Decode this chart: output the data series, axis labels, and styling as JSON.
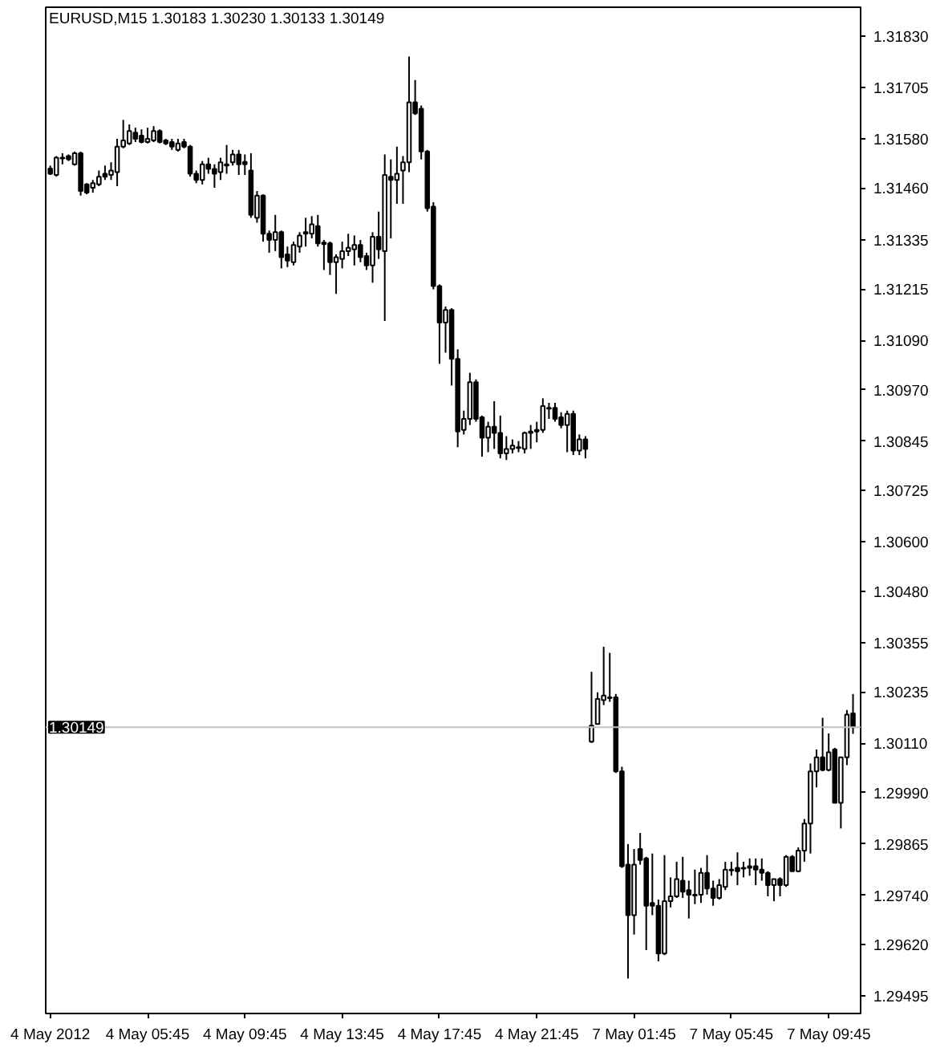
{
  "chart_data": {
    "type": "candlestick",
    "title": "EURUSD,M15  1.30183 1.30230 1.30133 1.30149",
    "categories": [
      "4 May 2012",
      null,
      null,
      null,
      null,
      null,
      null,
      null,
      null,
      null,
      null,
      null,
      null,
      null,
      null,
      null,
      "4 May 05:45",
      null,
      null,
      null,
      null,
      null,
      null,
      null,
      null,
      null,
      null,
      null,
      null,
      null,
      null,
      null,
      "4 May 09:45",
      null,
      null,
      null,
      null,
      null,
      null,
      null,
      null,
      null,
      null,
      null,
      null,
      null,
      null,
      null,
      "4 May 13:45",
      null,
      null,
      null,
      null,
      null,
      null,
      null,
      null,
      null,
      null,
      null,
      null,
      null,
      null,
      null,
      "4 May 17:45",
      null,
      null,
      null,
      null,
      null,
      null,
      null,
      null,
      null,
      null,
      null,
      null,
      null,
      null,
      null,
      "4 May 21:45",
      null,
      null,
      null,
      null,
      null,
      null,
      null,
      null,
      null,
      null,
      null,
      null,
      null,
      null,
      null,
      "7 May 01:45",
      null,
      null,
      null,
      null,
      null,
      null,
      null,
      null,
      null,
      null,
      null,
      null,
      null,
      null,
      null,
      "7 May 05:45",
      null,
      null,
      null,
      null,
      null,
      null,
      null,
      null,
      null,
      null,
      null,
      null,
      null,
      null,
      null,
      "7 May 09:45",
      null,
      null,
      null,
      null
    ],
    "ohlc": [
      [
        1.31508,
        1.31515,
        1.31492,
        1.31495
      ],
      [
        1.31492,
        1.31538,
        1.31488,
        1.31534
      ],
      [
        1.31532,
        1.31545,
        1.31518,
        1.31534
      ],
      [
        1.31538,
        1.31542,
        1.31526,
        1.3153
      ],
      [
        1.31518,
        1.31549,
        1.31515,
        1.31545
      ],
      [
        1.31545,
        1.31549,
        1.31442,
        1.31453
      ],
      [
        1.31469,
        1.31472,
        1.31445,
        1.31449
      ],
      [
        1.31461,
        1.3148,
        1.31449,
        1.31472
      ],
      [
        1.31469,
        1.31503,
        1.31465,
        1.31488
      ],
      [
        1.31495,
        1.31515,
        1.3148,
        1.31488
      ],
      [
        1.31492,
        1.31523,
        1.3148,
        1.31503
      ],
      [
        1.31499,
        1.3158,
        1.31465,
        1.31561
      ],
      [
        1.31561,
        1.31626,
        1.31557,
        1.31576
      ],
      [
        1.31569,
        1.31615,
        1.31565,
        1.31599
      ],
      [
        1.31595,
        1.31607,
        1.31572,
        1.3158
      ],
      [
        1.31588,
        1.31603,
        1.31569,
        1.31572
      ],
      [
        1.31572,
        1.31607,
        1.31569,
        1.3158
      ],
      [
        1.31576,
        1.31611,
        1.31572,
        1.31599
      ],
      [
        1.31599,
        1.31603,
        1.31569,
        1.31572
      ],
      [
        1.31576,
        1.3158,
        1.31565,
        1.31569
      ],
      [
        1.31572,
        1.3158,
        1.31553,
        1.31561
      ],
      [
        1.31553,
        1.3158,
        1.31549,
        1.31569
      ],
      [
        1.31572,
        1.3158,
        1.31557,
        1.31561
      ],
      [
        1.31561,
        1.31565,
        1.31488,
        1.31495
      ],
      [
        1.31495,
        1.31503,
        1.31472,
        1.3148
      ],
      [
        1.3148,
        1.31526,
        1.31469,
        1.31518
      ],
      [
        1.31518,
        1.31534,
        1.31495,
        1.31507
      ],
      [
        1.31507,
        1.31518,
        1.31461,
        1.31495
      ],
      [
        1.31499,
        1.31534,
        1.3148,
        1.31523
      ],
      [
        1.31518,
        1.31565,
        1.31495,
        1.31515
      ],
      [
        1.31523,
        1.31553,
        1.31515,
        1.31542
      ],
      [
        1.31542,
        1.31553,
        1.31492,
        1.31518
      ],
      [
        1.31524,
        1.31542,
        1.31492,
        1.31518
      ],
      [
        1.31503,
        1.31545,
        1.31388,
        1.31395
      ],
      [
        1.31388,
        1.31453,
        1.31376,
        1.31442
      ],
      [
        1.31442,
        1.31445,
        1.3133,
        1.31349
      ],
      [
        1.31349,
        1.31357,
        1.31303,
        1.31334
      ],
      [
        1.31334,
        1.31395,
        1.31307,
        1.31353
      ],
      [
        1.31353,
        1.31357,
        1.31265,
        1.31292
      ],
      [
        1.31299,
        1.31318,
        1.31268,
        1.31284
      ],
      [
        1.3128,
        1.3133,
        1.31272,
        1.31322
      ],
      [
        1.31318,
        1.31353,
        1.31303,
        1.31345
      ],
      [
        1.31349,
        1.31388,
        1.31318,
        1.31353
      ],
      [
        1.31349,
        1.31392,
        1.31338,
        1.31372
      ],
      [
        1.31368,
        1.31395,
        1.31318,
        1.31326
      ],
      [
        1.31328,
        1.31334,
        1.31261,
        1.31324
      ],
      [
        1.31326,
        1.3133,
        1.31249,
        1.3128
      ],
      [
        1.3128,
        1.31299,
        1.31203,
        1.31292
      ],
      [
        1.31288,
        1.3133,
        1.31265,
        1.31307
      ],
      [
        1.31307,
        1.31349,
        1.31295,
        1.31315
      ],
      [
        1.31311,
        1.31345,
        1.31272,
        1.31322
      ],
      [
        1.31322,
        1.31334,
        1.3128,
        1.31292
      ],
      [
        1.31295,
        1.31303,
        1.31261,
        1.31272
      ],
      [
        1.31272,
        1.31353,
        1.3123,
        1.31342
      ],
      [
        1.31342,
        1.31403,
        1.31288,
        1.31311
      ],
      [
        1.31307,
        1.31542,
        1.31137,
        1.31492
      ],
      [
        1.31488,
        1.3153,
        1.31338,
        1.3148
      ],
      [
        1.3148,
        1.31561,
        1.31422,
        1.31495
      ],
      [
        1.31503,
        1.31538,
        1.31422,
        1.31523
      ],
      [
        1.31523,
        1.3178,
        1.31499,
        1.31669
      ],
      [
        1.31669,
        1.31723,
        1.31638,
        1.31642
      ],
      [
        1.31653,
        1.31661,
        1.3153,
        1.31549
      ],
      [
        1.31549,
        1.31553,
        1.31403,
        1.31411
      ],
      [
        1.31415,
        1.31426,
        1.31214,
        1.31222
      ],
      [
        1.31222,
        1.31226,
        1.31033,
        1.31133
      ],
      [
        1.31133,
        1.31172,
        1.3106,
        1.31164
      ],
      [
        1.31164,
        1.31168,
        1.3098,
        1.31045
      ],
      [
        1.31045,
        1.31068,
        1.3083,
        1.30868
      ],
      [
        1.30872,
        1.30919,
        1.30861,
        1.30899
      ],
      [
        1.30899,
        1.31011,
        1.30884,
        1.30988
      ],
      [
        1.30988,
        1.30995,
        1.30892,
        1.30899
      ],
      [
        1.30903,
        1.30907,
        1.30807,
        1.30853
      ],
      [
        1.30853,
        1.30892,
        1.30818,
        1.3088
      ],
      [
        1.3088,
        1.30942,
        1.30826,
        1.30865
      ],
      [
        1.30865,
        1.30907,
        1.30803,
        1.30815
      ],
      [
        1.30815,
        1.30857,
        1.30799,
        1.30826
      ],
      [
        1.30826,
        1.30849,
        1.30815,
        1.30834
      ],
      [
        1.3083,
        1.30845,
        1.30818,
        1.30828
      ],
      [
        1.30826,
        1.30868,
        1.30815,
        1.30865
      ],
      [
        1.30868,
        1.30884,
        1.30826,
        1.30865
      ],
      [
        1.30872,
        1.30892,
        1.30842,
        1.30868
      ],
      [
        1.30872,
        1.30949,
        1.30865,
        1.3093
      ],
      [
        1.30926,
        1.30938,
        1.30899,
        1.30924
      ],
      [
        1.30926,
        1.30938,
        1.30892,
        1.30899
      ],
      [
        1.30903,
        1.30915,
        1.30876,
        1.30884
      ],
      [
        1.30884,
        1.30919,
        1.30818,
        1.30911
      ],
      [
        1.30911,
        1.30919,
        1.30811,
        1.30822
      ],
      [
        1.30822,
        1.30861,
        1.30811,
        1.30849
      ],
      [
        1.30849,
        1.30857,
        1.30803,
        1.30826
      ],
      [
        1.30114,
        1.30284,
        1.30111,
        1.30153
      ],
      [
        1.30157,
        1.30234,
        1.30157,
        1.30218
      ],
      [
        1.30215,
        1.30345,
        1.30203,
        1.30226
      ],
      [
        1.30222,
        1.3033,
        1.30211,
        1.3022
      ],
      [
        1.30222,
        1.3023,
        1.30038,
        1.30042
      ],
      [
        1.30042,
        1.30053,
        1.29807,
        1.29811
      ],
      [
        1.29815,
        1.29865,
        1.29538,
        1.29692
      ],
      [
        1.29692,
        1.29853,
        1.29645,
        1.29815
      ],
      [
        1.29853,
        1.29892,
        1.29815,
        1.29826
      ],
      [
        1.2983,
        1.29834,
        1.29607,
        1.29715
      ],
      [
        1.29722,
        1.29842,
        1.29692,
        1.29715
      ],
      [
        1.29715,
        1.2973,
        1.2958,
        1.29599
      ],
      [
        1.29599,
        1.29838,
        1.29595,
        1.29726
      ],
      [
        1.29726,
        1.29784,
        1.29711,
        1.29738
      ],
      [
        1.29738,
        1.29822,
        1.29734,
        1.2978
      ],
      [
        1.29776,
        1.29834,
        1.29734,
        1.29749
      ],
      [
        1.29753,
        1.29776,
        1.29684,
        1.29742
      ],
      [
        1.29742,
        1.29803,
        1.29719,
        1.2974
      ],
      [
        1.29742,
        1.29807,
        1.29722,
        1.29795
      ],
      [
        1.29795,
        1.29838,
        1.29742,
        1.29757
      ],
      [
        1.29757,
        1.29776,
        1.29715,
        1.29734
      ],
      [
        1.29734,
        1.2978,
        1.2973,
        1.29765
      ],
      [
        1.29761,
        1.29822,
        1.29753,
        1.29803
      ],
      [
        1.29801,
        1.29822,
        1.29788,
        1.29803
      ],
      [
        1.29807,
        1.29845,
        1.29765,
        1.29799
      ],
      [
        1.29805,
        1.29822,
        1.29784,
        1.29807
      ],
      [
        1.29807,
        1.2983,
        1.29788,
        1.29811
      ],
      [
        1.29811,
        1.2983,
        1.29765,
        1.29803
      ],
      [
        1.29803,
        1.2983,
        1.29776,
        1.29795
      ],
      [
        1.29795,
        1.29799,
        1.29738,
        1.29765
      ],
      [
        1.29765,
        1.2978,
        1.29726,
        1.2978
      ],
      [
        1.2978,
        1.29784,
        1.29738,
        1.29765
      ],
      [
        1.29765,
        1.29838,
        1.29761,
        1.29834
      ],
      [
        1.29834,
        1.29838,
        1.29799,
        1.29799
      ],
      [
        1.29799,
        1.29857,
        1.29799,
        1.29849
      ],
      [
        1.29849,
        1.29926,
        1.29822,
        1.29915
      ],
      [
        1.29915,
        1.30061,
        1.29842,
        1.30042
      ],
      [
        1.30042,
        1.30095,
        1.30003,
        1.30076
      ],
      [
        1.30076,
        1.30172,
        1.30042,
        1.30045
      ],
      [
        1.30045,
        1.30134,
        1.30042,
        1.30088
      ],
      [
        1.30095,
        1.30099,
        1.29965,
        1.29965
      ],
      [
        1.29965,
        1.30076,
        1.29903,
        1.30076
      ],
      [
        1.30076,
        1.30191,
        1.30057,
        1.3018
      ],
      [
        1.30183,
        1.3023,
        1.30133,
        1.30149
      ]
    ],
    "ylim": [
      1.29453,
      1.319
    ],
    "yticks": [
      {
        "value": 1.3183,
        "label": "1.31830"
      },
      1.31705,
      {
        "value": 1.3158,
        "label": "1.31580"
      },
      {
        "value": 1.3146,
        "label": "1.31460"
      },
      1.31335,
      1.31215,
      {
        "value": 1.3109,
        "label": "1.31090"
      },
      {
        "value": 1.3097,
        "label": "1.30970"
      },
      1.30845,
      1.30725,
      {
        "value": 1.306,
        "label": "1.30600"
      },
      {
        "value": 1.3048,
        "label": "1.30480"
      },
      1.30355,
      1.30235,
      {
        "value": 1.3011,
        "label": "1.30110"
      },
      {
        "value": 1.2999,
        "label": "1.29990"
      },
      1.29865,
      {
        "value": 1.2974,
        "label": "1.29740"
      },
      {
        "value": 1.2962,
        "label": "1.29620"
      },
      1.29495
    ],
    "ref_lines": [
      {
        "axis": "y",
        "value": 1.30149,
        "label": "1.30149",
        "color": "#c0c0c0"
      }
    ],
    "grid": false
  }
}
